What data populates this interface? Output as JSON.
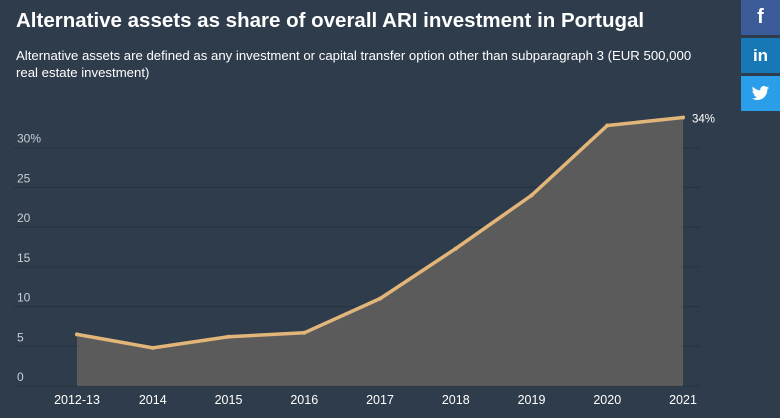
{
  "header": {
    "title": "Alternative assets as share of overall ARI investment in Portugal",
    "subtitle": "Alternative assets are defined as any investment or capital transfer option other than subparagraph 3 (EUR 500,000 real estate investment)"
  },
  "share": {
    "facebook_label": "f",
    "linkedin_label": "in",
    "icons": [
      "facebook-icon",
      "linkedin-icon",
      "twitter-icon"
    ]
  },
  "colors": {
    "background": "#2f3c4b",
    "line": "#e2b578",
    "area": "#5e5d5c",
    "grid": "#263341",
    "text": "#ffffff",
    "axis_text": "#c9cfd6"
  },
  "chart_data": {
    "type": "area",
    "title": "Alternative assets as share of overall ARI investment in Portugal",
    "subtitle": "Alternative assets are defined as any investment or capital transfer option other than subparagraph 3 (EUR 500,000 real estate investment)",
    "categories": [
      "2012-13",
      "2014",
      "2015",
      "2016",
      "2017",
      "2018",
      "2019",
      "2020",
      "2021"
    ],
    "values": [
      6.5,
      4.8,
      6.2,
      6.7,
      11.0,
      17.3,
      24.0,
      32.8,
      33.8
    ],
    "ylim": [
      0,
      35
    ],
    "yticks": [
      0,
      5,
      10,
      15,
      20,
      25,
      30
    ],
    "ytick_labels": [
      "0",
      "5",
      "10",
      "15",
      "20",
      "25",
      "30%"
    ],
    "data_labels": [
      {
        "category": "2021",
        "text": "34%"
      }
    ],
    "grid": true,
    "legend": "none"
  }
}
